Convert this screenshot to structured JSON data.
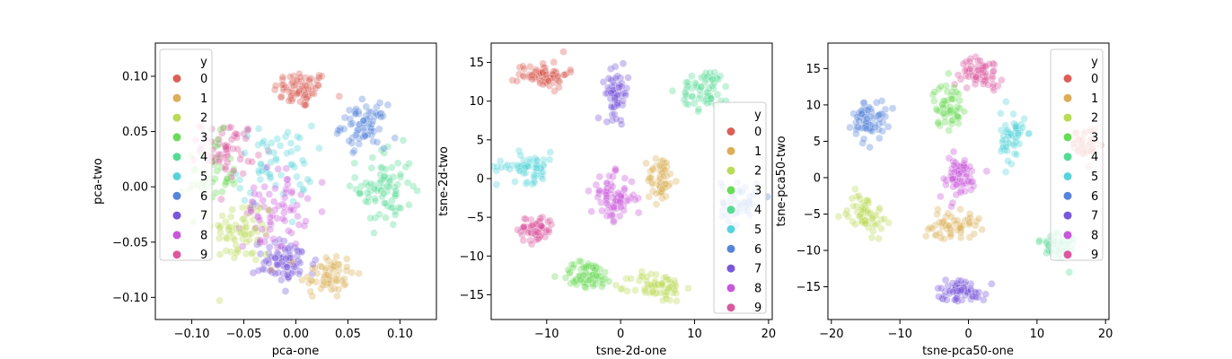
{
  "palette": [
    "#db5f57",
    "#dbae57",
    "#b9db57",
    "#69db57",
    "#57db94",
    "#57d3db",
    "#5784db",
    "#7957db",
    "#c957db",
    "#db579e"
  ],
  "chart_data": [
    {
      "type": "scatter",
      "title": "",
      "xlabel": "pca-one",
      "ylabel": "pca-two",
      "xlim": [
        -0.135,
        0.135
      ],
      "ylim": [
        -0.12,
        0.13
      ],
      "xticks": [
        -0.1,
        -0.05,
        0.0,
        0.05,
        0.1
      ],
      "xtick_labels": [
        "−0.10",
        "−0.05",
        "0.00",
        "0.05",
        "0.10"
      ],
      "yticks": [
        -0.1,
        -0.05,
        0.0,
        0.05,
        0.1
      ],
      "ytick_labels": [
        "−0.10",
        "−0.05",
        "0.00",
        "0.05",
        "0.10"
      ],
      "grid": false,
      "legend": {
        "title": "y",
        "placement": "upper-left",
        "labels": [
          "0",
          "1",
          "2",
          "3",
          "4",
          "5",
          "6",
          "7",
          "8",
          "9"
        ]
      },
      "clusters": [
        {
          "label": "0",
          "center": [
            0.005,
            0.088
          ],
          "spread": [
            0.022,
            0.014
          ],
          "n": 70
        },
        {
          "label": "1",
          "center": [
            0.03,
            -0.08
          ],
          "spread": [
            0.022,
            0.018
          ],
          "n": 60
        },
        {
          "label": "2",
          "center": [
            -0.05,
            -0.04
          ],
          "spread": [
            0.025,
            0.025
          ],
          "n": 70
        },
        {
          "label": "3",
          "center": [
            -0.08,
            0.01
          ],
          "spread": [
            0.02,
            0.03
          ],
          "n": 45
        },
        {
          "label": "4",
          "center": [
            0.085,
            0.0
          ],
          "spread": [
            0.022,
            0.03
          ],
          "n": 80
        },
        {
          "label": "5",
          "center": [
            -0.02,
            0.02
          ],
          "spread": [
            0.03,
            0.03
          ],
          "n": 60
        },
        {
          "label": "6",
          "center": [
            0.065,
            0.055
          ],
          "spread": [
            0.018,
            0.016
          ],
          "n": 70
        },
        {
          "label": "7",
          "center": [
            -0.01,
            -0.068
          ],
          "spread": [
            0.025,
            0.016
          ],
          "n": 80
        },
        {
          "label": "8",
          "center": [
            -0.02,
            -0.02
          ],
          "spread": [
            0.025,
            0.03
          ],
          "n": 70
        },
        {
          "label": "9",
          "center": [
            -0.065,
            0.035
          ],
          "spread": [
            0.022,
            0.02
          ],
          "n": 60
        }
      ]
    },
    {
      "type": "scatter",
      "title": "",
      "xlabel": "tsne-2d-one",
      "ylabel": "tsne-2d-two",
      "xlim": [
        -17.5,
        20.5
      ],
      "ylim": [
        -18.2,
        17.5
      ],
      "xticks": [
        -10,
        0,
        10,
        20
      ],
      "xtick_labels": [
        "−10",
        "0",
        "10",
        "20"
      ],
      "yticks": [
        -15,
        -10,
        -5,
        0,
        5,
        10,
        15
      ],
      "ytick_labels": [
        "−15",
        "−10",
        "−5",
        "0",
        "5",
        "10",
        "15"
      ],
      "grid": false,
      "legend": {
        "title": "y",
        "placement": "center-right",
        "labels": [
          "0",
          "1",
          "2",
          "3",
          "4",
          "5",
          "6",
          "7",
          "8",
          "9"
        ]
      },
      "clusters": [
        {
          "label": "0",
          "center": [
            -10.5,
            13.5
          ],
          "spread": [
            2.8,
            1.4
          ],
          "n": 75
        },
        {
          "label": "1",
          "center": [
            5.5,
            0.0
          ],
          "spread": [
            1.5,
            2.5
          ],
          "n": 55
        },
        {
          "label": "2",
          "center": [
            5.0,
            -14.0
          ],
          "spread": [
            3.0,
            1.6
          ],
          "n": 65
        },
        {
          "label": "3",
          "center": [
            -4.5,
            -12.5
          ],
          "spread": [
            3.0,
            1.5
          ],
          "n": 70
        },
        {
          "label": "4",
          "center": [
            11.5,
            11.5
          ],
          "spread": [
            2.8,
            2.2
          ],
          "n": 60
        },
        {
          "label": "5",
          "center": [
            -12.5,
            1.5
          ],
          "spread": [
            3.5,
            1.6
          ],
          "n": 60
        },
        {
          "label": "6",
          "center": [
            16.0,
            -3.0
          ],
          "spread": [
            2.0,
            2.5
          ],
          "n": 45
        },
        {
          "label": "7",
          "center": [
            -0.5,
            11.0
          ],
          "spread": [
            1.3,
            2.5
          ],
          "n": 60
        },
        {
          "label": "8",
          "center": [
            -1.0,
            -2.5
          ],
          "spread": [
            2.5,
            2.5
          ],
          "n": 75
        },
        {
          "label": "9",
          "center": [
            -11.5,
            -6.5
          ],
          "spread": [
            2.0,
            1.4
          ],
          "n": 60
        }
      ]
    },
    {
      "type": "scatter",
      "title": "",
      "xlabel": "tsne-pca50-one",
      "ylabel": "tsne-pca50-two",
      "xlim": [
        -20.5,
        20.5
      ],
      "ylim": [
        -19.5,
        18.5
      ],
      "xticks": [
        -20,
        -10,
        0,
        10,
        20
      ],
      "xtick_labels": [
        "−20",
        "−10",
        "0",
        "10",
        "20"
      ],
      "yticks": [
        -15,
        -10,
        -5,
        0,
        5,
        10,
        15
      ],
      "ytick_labels": [
        "−15",
        "−10",
        "−5",
        "0",
        "5",
        "10",
        "15"
      ],
      "grid": false,
      "legend": {
        "title": "y",
        "placement": "upper-right",
        "labels": [
          "0",
          "1",
          "2",
          "3",
          "4",
          "5",
          "6",
          "7",
          "8",
          "9"
        ]
      },
      "clusters": [
        {
          "label": "0",
          "center": [
            17.0,
            4.5
          ],
          "spread": [
            1.5,
            2.0
          ],
          "n": 40
        },
        {
          "label": "1",
          "center": [
            -2.5,
            -6.5
          ],
          "spread": [
            3.5,
            1.5
          ],
          "n": 55
        },
        {
          "label": "2",
          "center": [
            -15.0,
            -5.0
          ],
          "spread": [
            2.2,
            2.3
          ],
          "n": 60
        },
        {
          "label": "3",
          "center": [
            -3.0,
            10.0
          ],
          "spread": [
            1.8,
            2.5
          ],
          "n": 55
        },
        {
          "label": "4",
          "center": [
            13.0,
            -9.5
          ],
          "spread": [
            2.2,
            2.2
          ],
          "n": 55
        },
        {
          "label": "5",
          "center": [
            6.5,
            5.5
          ],
          "spread": [
            1.5,
            3.0
          ],
          "n": 55
        },
        {
          "label": "6",
          "center": [
            -14.5,
            8.0
          ],
          "spread": [
            2.0,
            2.2
          ],
          "n": 70
        },
        {
          "label": "7",
          "center": [
            -1.0,
            -15.5
          ],
          "spread": [
            3.0,
            1.3
          ],
          "n": 65
        },
        {
          "label": "8",
          "center": [
            -1.5,
            0.0
          ],
          "spread": [
            2.5,
            2.5
          ],
          "n": 65
        },
        {
          "label": "9",
          "center": [
            2.0,
            14.5
          ],
          "spread": [
            2.5,
            1.6
          ],
          "n": 60
        }
      ]
    }
  ]
}
